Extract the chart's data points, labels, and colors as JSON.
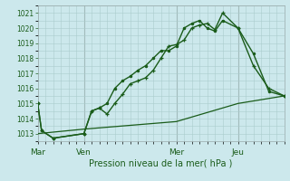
{
  "xlabel": "Pression niveau de la mer( hPa )",
  "bg_color": "#cce8ec",
  "grid_color": "#aacccc",
  "line_color": "#1a5c1a",
  "vline_color": "#99aaaa",
  "ylim": [
    1012.5,
    1021.5
  ],
  "yticks": [
    1013,
    1014,
    1015,
    1016,
    1017,
    1018,
    1019,
    1020,
    1021
  ],
  "day_labels": [
    "Mar",
    "Ven",
    "Mer",
    "Jeu"
  ],
  "day_positions": [
    0,
    6,
    18,
    26
  ],
  "vline_positions": [
    6,
    18,
    26
  ],
  "xlim": [
    0,
    32
  ],
  "series1_x": [
    0,
    0.5,
    2,
    6,
    7,
    8,
    9,
    10,
    11,
    12,
    13,
    14,
    15,
    16,
    17,
    18,
    19,
    20,
    21,
    22,
    23,
    24,
    26,
    28,
    30,
    32
  ],
  "series1_y": [
    1015.0,
    1013.2,
    1012.7,
    1013.0,
    1014.5,
    1014.7,
    1014.3,
    1015.0,
    1015.6,
    1016.3,
    1016.5,
    1016.7,
    1017.2,
    1018.0,
    1018.8,
    1018.9,
    1019.2,
    1020.0,
    1020.2,
    1020.3,
    1019.9,
    1021.0,
    1020.0,
    1017.5,
    1016.0,
    1015.5
  ],
  "series2_x": [
    0,
    0.5,
    2,
    6,
    7,
    8,
    9,
    10,
    11,
    12,
    13,
    14,
    15,
    16,
    17,
    18,
    19,
    20,
    21,
    22,
    23,
    24,
    26,
    28,
    30,
    32
  ],
  "series2_y": [
    1015.0,
    1013.2,
    1012.7,
    1013.0,
    1014.5,
    1014.7,
    1015.0,
    1016.0,
    1016.5,
    1016.8,
    1017.2,
    1017.5,
    1018.0,
    1018.5,
    1018.5,
    1018.8,
    1020.0,
    1020.3,
    1020.5,
    1020.0,
    1019.8,
    1020.5,
    1020.0,
    1018.3,
    1015.8,
    1015.5
  ],
  "series3_x": [
    0,
    6,
    18,
    26,
    32
  ],
  "series3_y": [
    1013.0,
    1013.3,
    1013.8,
    1015.0,
    1015.5
  ]
}
